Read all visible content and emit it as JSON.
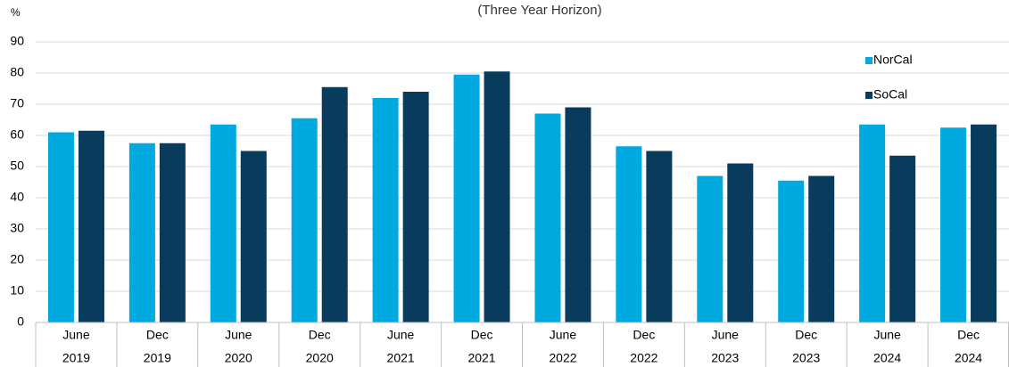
{
  "chart_data": {
    "type": "bar",
    "title": "(Three Year Horizon)",
    "y_label": "%",
    "categories": [
      [
        "June",
        "2019"
      ],
      [
        "Dec",
        "2019"
      ],
      [
        "June",
        "2020"
      ],
      [
        "Dec",
        "2020"
      ],
      [
        "June",
        "2021"
      ],
      [
        "Dec",
        "2021"
      ],
      [
        "June",
        "2022"
      ],
      [
        "Dec",
        "2022"
      ],
      [
        "June",
        "2023"
      ],
      [
        "Dec",
        "2023"
      ],
      [
        "June",
        "2024"
      ],
      [
        "Dec",
        "2024"
      ]
    ],
    "series": [
      {
        "name": "NorCal",
        "color": "#00a9e0",
        "values": [
          61,
          57.5,
          63.5,
          65.5,
          72,
          79.5,
          67,
          56.5,
          47,
          45.5,
          63.5,
          62.5
        ]
      },
      {
        "name": "SoCal",
        "color": "#083b5c",
        "values": [
          61.5,
          57.5,
          55,
          75.5,
          74,
          80.5,
          69,
          55,
          51,
          47,
          53.5,
          63.5
        ]
      }
    ],
    "ylim": [
      0,
      90
    ],
    "yticks": [
      0,
      10,
      20,
      30,
      40,
      50,
      60,
      70,
      80,
      90
    ],
    "grid": true,
    "legend": "top-right"
  }
}
